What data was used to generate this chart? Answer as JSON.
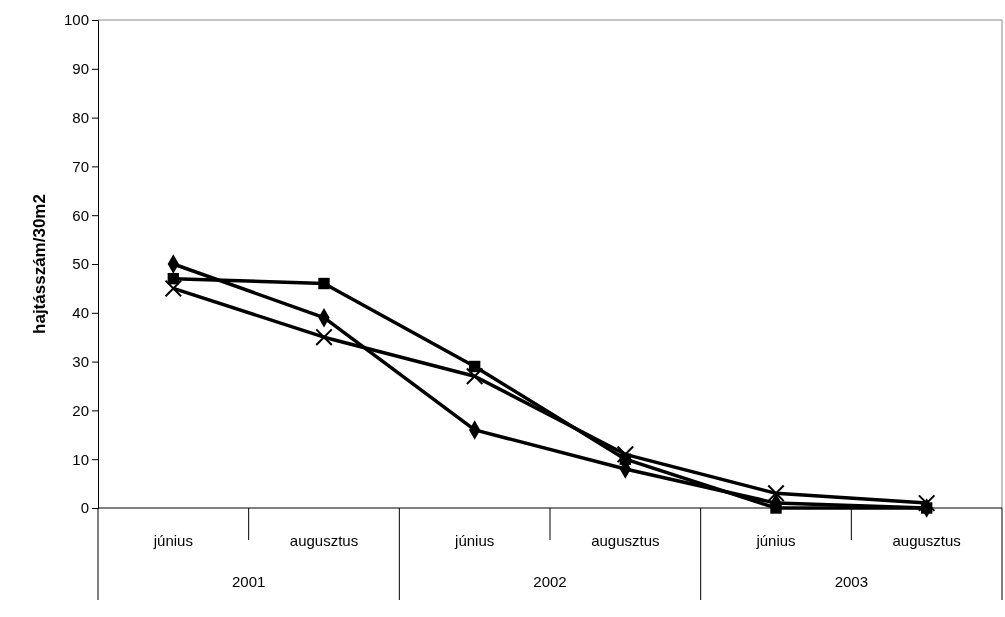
{
  "chart_data": {
    "type": "line",
    "ylabel": "hajtásszám/30m2",
    "categories": [
      "június",
      "augusztus",
      "június",
      "augusztus",
      "június",
      "augusztus"
    ],
    "annotations": [
      "2001",
      "2002",
      "2003"
    ],
    "ylim": [
      0,
      100
    ],
    "yticks": [
      0,
      10,
      20,
      30,
      40,
      50,
      60,
      70,
      80,
      90,
      100
    ],
    "grid": false,
    "line_style": "solid",
    "series": [
      {
        "color": "#000000",
        "marker": "diamond",
        "values": [
          50,
          39,
          16,
          8,
          1,
          0
        ]
      },
      {
        "color": "#000000",
        "marker": "square",
        "values": [
          47,
          46,
          29,
          10,
          0,
          0
        ]
      },
      {
        "color": "#000000",
        "marker": "cross",
        "values": [
          45,
          35,
          27,
          11,
          3,
          1
        ]
      }
    ]
  }
}
